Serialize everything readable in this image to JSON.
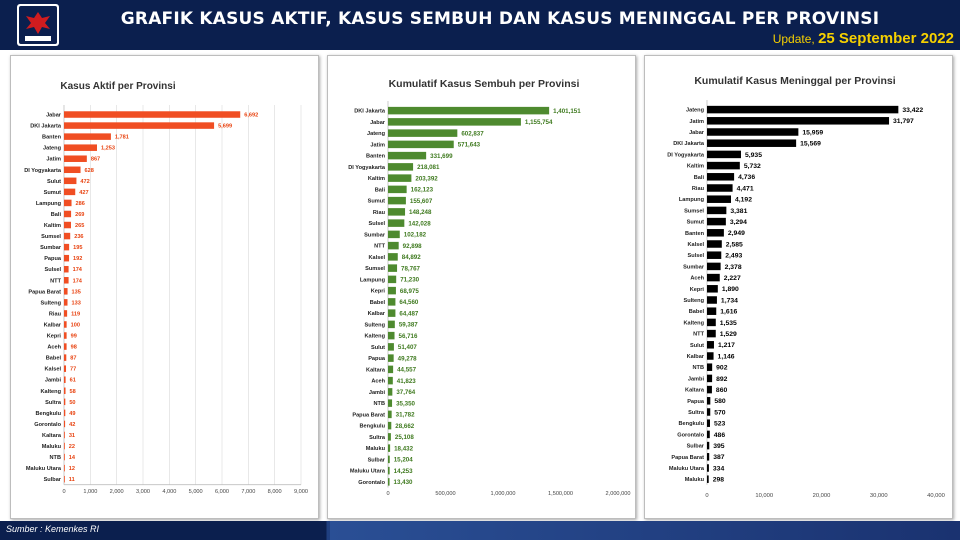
{
  "header": {
    "title": "GRAFIK KASUS AKTIF, KASUS SEMBUH DAN KASUS MENINGGAL PER PROVINSI",
    "update_label": "Update,",
    "update_date": "25 September 2022"
  },
  "footer": {
    "source": "Sumber : Kemenkes RI"
  },
  "colors": {
    "header_bg": "#0b1f4e",
    "aktif": "#f04e23",
    "sembuh": "#4e8a2f",
    "meninggal": "#000000",
    "update_text": "#f6d000"
  },
  "chart_data": [
    {
      "type": "bar",
      "orientation": "horizontal",
      "title": "Kasus Aktif per Provinsi",
      "color": "#f04e23",
      "label_color": "#e8420f",
      "xlim": [
        0,
        9000
      ],
      "xticks": [
        0,
        1000,
        2000,
        3000,
        4000,
        5000,
        6000,
        7000,
        8000,
        9000
      ],
      "tick_labels": [
        "0",
        "1,000",
        "2,000",
        "3,000",
        "4,000",
        "5,000",
        "6,000",
        "7,000",
        "8,000",
        "9,000"
      ],
      "grid": true,
      "categories": [
        "Jabar",
        "DKI Jakarta",
        "Banten",
        "Jateng",
        "Jatim",
        "DI Yogyakarta",
        "Sulut",
        "Sumut",
        "Lampung",
        "Bali",
        "Kaltim",
        "Sumsel",
        "Sumbar",
        "Papua",
        "Sulsel",
        "NTT",
        "Papua Barat",
        "Sulteng",
        "Riau",
        "Kalbar",
        "Kepri",
        "Aceh",
        "Babel",
        "Kalsel",
        "Jambi",
        "Kalteng",
        "Sultra",
        "Bengkulu",
        "Gorontalo",
        "Kaltara",
        "Maluku",
        "NTB",
        "Maluku Utara",
        "Sulbar"
      ],
      "values": [
        6692,
        5699,
        1781,
        1253,
        867,
        628,
        472,
        427,
        286,
        269,
        265,
        236,
        195,
        192,
        174,
        174,
        135,
        133,
        119,
        100,
        99,
        98,
        87,
        77,
        61,
        58,
        50,
        49,
        42,
        31,
        22,
        14,
        12,
        11
      ],
      "labels": [
        "6,692",
        "5,699",
        "1,781",
        "1,253",
        "867",
        "628",
        "472",
        "427",
        "286",
        "269",
        "265",
        "236",
        "195",
        "192",
        "174",
        "174",
        "135",
        "133",
        "119",
        "100",
        "99",
        "98",
        "87",
        "77",
        "61",
        "58",
        "50",
        "49",
        "42",
        "31",
        "22",
        "14",
        "12",
        "11"
      ]
    },
    {
      "type": "bar",
      "orientation": "horizontal",
      "title": "Kumulatif Kasus Sembuh per Provinsi",
      "color": "#4e8a2f",
      "label_color": "#3f7a1f",
      "xlim": [
        0,
        2000000
      ],
      "xticks": [
        0,
        500000,
        1000000,
        1500000,
        2000000
      ],
      "tick_labels": [
        "0",
        "500,000",
        "1,000,000",
        "1,500,000",
        "2,000,000"
      ],
      "grid": false,
      "categories": [
        "DKI Jakarta",
        "Jabar",
        "Jateng",
        "Jatim",
        "Banten",
        "DI Yogyakarta",
        "Kaltim",
        "Bali",
        "Sumut",
        "Riau",
        "Sulsel",
        "Sumbar",
        "NTT",
        "Kalsel",
        "Sumsel",
        "Lampung",
        "Kepri",
        "Babel",
        "Kalbar",
        "Sulteng",
        "Kalteng",
        "Sulut",
        "Papua",
        "Kaltara",
        "Aceh",
        "Jambi",
        "NTB",
        "Papua Barat",
        "Bengkulu",
        "Sultra",
        "Maluku",
        "Sulbar",
        "Maluku Utara",
        "Gorontalo"
      ],
      "values": [
        1401151,
        1155754,
        602837,
        571643,
        331699,
        218081,
        203392,
        162123,
        155607,
        148248,
        142028,
        102182,
        92898,
        84892,
        78767,
        71230,
        68975,
        64560,
        64487,
        59387,
        56716,
        51407,
        49278,
        44557,
        41823,
        37764,
        35350,
        31782,
        28662,
        25108,
        18432,
        15204,
        14253,
        13430
      ],
      "labels": [
        "1,401,151",
        "1,155,754",
        "602,837",
        "571,643",
        "331,699",
        "218,081",
        "203,392",
        "162,123",
        "155,607",
        "148,248",
        "142,028",
        "102,182",
        "92,898",
        "84,892",
        "78,767",
        "71,230",
        "68,975",
        "64,560",
        "64,487",
        "59,387",
        "56,716",
        "51,407",
        "49,278",
        "44,557",
        "41,823",
        "37,764",
        "35,350",
        "31,782",
        "28,662",
        "25,108",
        "18,432",
        "15,204",
        "14,253",
        "13,430"
      ]
    },
    {
      "type": "bar",
      "orientation": "horizontal",
      "title": "Kumulatif Kasus Meninggal per Provinsi",
      "color": "#000000",
      "label_color": "#000000",
      "xlim": [
        0,
        40000
      ],
      "xticks": [
        0,
        10000,
        20000,
        30000,
        40000
      ],
      "tick_labels": [
        "0",
        "10,000",
        "20,000",
        "30,000",
        "40,000"
      ],
      "grid": false,
      "categories": [
        "Jateng",
        "Jatim",
        "Jabar",
        "DKI Jakarta",
        "DI Yogyakarta",
        "Kaltim",
        "Bali",
        "Riau",
        "Lampung",
        "Sumsel",
        "Sumut",
        "Banten",
        "Kalsel",
        "Sulsel",
        "Sumbar",
        "Aceh",
        "Kepri",
        "Sulteng",
        "Babel",
        "Kalteng",
        "NTT",
        "Sulut",
        "Kalbar",
        "NTB",
        "Jambi",
        "Kaltara",
        "Papua",
        "Sultra",
        "Bengkulu",
        "Gorontalo",
        "Sulbar",
        "Papua Barat",
        "Maluku Utara",
        "Maluku"
      ],
      "values": [
        33422,
        31797,
        15959,
        15569,
        5935,
        5732,
        4736,
        4471,
        4192,
        3381,
        3294,
        2949,
        2585,
        2493,
        2378,
        2227,
        1890,
        1734,
        1616,
        1535,
        1529,
        1217,
        1146,
        902,
        892,
        860,
        580,
        570,
        523,
        486,
        395,
        387,
        334,
        298
      ],
      "labels": [
        "33,422",
        "31,797",
        "15,959",
        "15,569",
        "5,935",
        "5,732",
        "4,736",
        "4,471",
        "4,192",
        "3,381",
        "3,294",
        "2,949",
        "2,585",
        "2,493",
        "2,378",
        "2,227",
        "1,890",
        "1,734",
        "1,616",
        "1,535",
        "1,529",
        "1,217",
        "1,146",
        "902",
        "892",
        "860",
        "580",
        "570",
        "523",
        "486",
        "395",
        "387",
        "334",
        "298"
      ]
    }
  ]
}
